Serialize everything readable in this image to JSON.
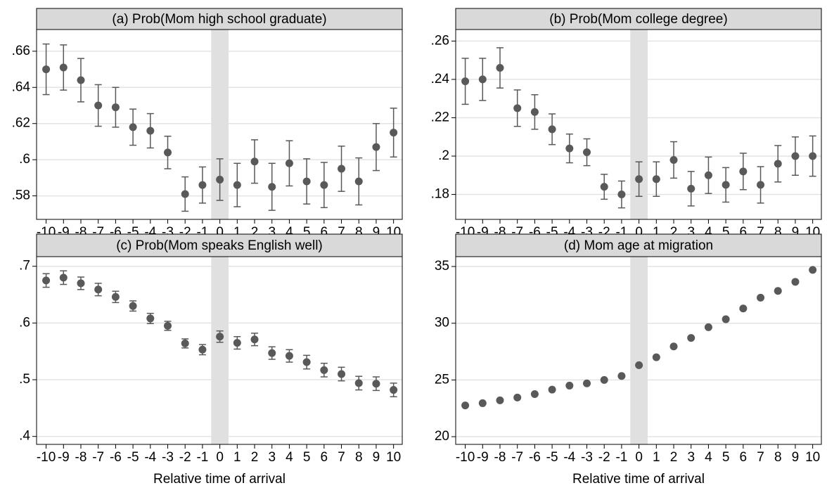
{
  "chart_data": [
    {
      "type": "scatter",
      "title": "(a) Prob(Mom high school graduate)",
      "x": [
        -10,
        -9,
        -8,
        -7,
        -6,
        -5,
        -4,
        -3,
        -2,
        -1,
        0,
        1,
        2,
        3,
        4,
        5,
        6,
        7,
        8,
        9,
        10
      ],
      "values": [
        0.65,
        0.651,
        0.644,
        0.63,
        0.629,
        0.618,
        0.616,
        0.604,
        0.581,
        0.586,
        0.589,
        0.586,
        0.599,
        0.585,
        0.598,
        0.588,
        0.586,
        0.595,
        0.588,
        0.607,
        0.615
      ],
      "errors": [
        0.014,
        0.0125,
        0.012,
        0.0115,
        0.011,
        0.01,
        0.0095,
        0.009,
        0.0095,
        0.01,
        0.0115,
        0.012,
        0.012,
        0.013,
        0.0125,
        0.0125,
        0.0125,
        0.0125,
        0.013,
        0.013,
        0.0135
      ],
      "color": "#595959",
      "xlim": [
        -10.55,
        10.5
      ],
      "xticks": [
        -10,
        -9,
        -8,
        -7,
        -6,
        -5,
        -4,
        -3,
        -2,
        -1,
        0,
        1,
        2,
        3,
        4,
        5,
        6,
        7,
        8,
        9,
        10
      ],
      "ylim": [
        0.567,
        0.672
      ],
      "yticks": [
        {
          "value": 0.58,
          "label": ".58"
        },
        {
          "value": 0.6,
          "label": ".6"
        },
        {
          "value": 0.62,
          "label": ".62"
        },
        {
          "value": 0.64,
          "label": ".64"
        },
        {
          "value": 0.66,
          "label": ".66"
        }
      ],
      "grid": true,
      "shaded_x": [
        -0.5,
        0.5
      ]
    },
    {
      "type": "scatter",
      "title": "(b) Prob(Mom college degree)",
      "x": [
        -10,
        -9,
        -8,
        -7,
        -6,
        -5,
        -4,
        -3,
        -2,
        -1,
        0,
        1,
        2,
        3,
        4,
        5,
        6,
        7,
        8,
        9,
        10
      ],
      "values": [
        0.239,
        0.24,
        0.246,
        0.225,
        0.223,
        0.214,
        0.204,
        0.202,
        0.184,
        0.18,
        0.188,
        0.188,
        0.198,
        0.183,
        0.19,
        0.185,
        0.192,
        0.185,
        0.196,
        0.2,
        0.2
      ],
      "errors": [
        0.012,
        0.011,
        0.0105,
        0.0095,
        0.009,
        0.008,
        0.0075,
        0.007,
        0.0065,
        0.007,
        0.009,
        0.009,
        0.0095,
        0.009,
        0.0095,
        0.009,
        0.0095,
        0.0095,
        0.0095,
        0.01,
        0.0105
      ],
      "color": "#595959",
      "xlim": [
        -10.55,
        10.5
      ],
      "xticks": [
        -10,
        -9,
        -8,
        -7,
        -6,
        -5,
        -4,
        -3,
        -2,
        -1,
        0,
        1,
        2,
        3,
        4,
        5,
        6,
        7,
        8,
        9,
        10
      ],
      "ylim": [
        0.167,
        0.266
      ],
      "yticks": [
        {
          "value": 0.18,
          "label": ".18"
        },
        {
          "value": 0.2,
          "label": ".2"
        },
        {
          "value": 0.22,
          "label": ".22"
        },
        {
          "value": 0.24,
          "label": ".24"
        },
        {
          "value": 0.26,
          "label": ".26"
        }
      ],
      "grid": true,
      "shaded_x": [
        -0.5,
        0.5
      ]
    },
    {
      "type": "scatter",
      "title": "(c) Prob(Mom speaks English well)",
      "xlabel": "Relative time of arrival",
      "x": [
        -10,
        -9,
        -8,
        -7,
        -6,
        -5,
        -4,
        -3,
        -2,
        -1,
        0,
        1,
        2,
        3,
        4,
        5,
        6,
        7,
        8,
        9,
        10
      ],
      "values": [
        0.675,
        0.68,
        0.67,
        0.659,
        0.646,
        0.63,
        0.608,
        0.595,
        0.564,
        0.553,
        0.576,
        0.565,
        0.571,
        0.547,
        0.542,
        0.531,
        0.517,
        0.51,
        0.494,
        0.493,
        0.482
      ],
      "errors": [
        0.012,
        0.012,
        0.011,
        0.011,
        0.01,
        0.009,
        0.009,
        0.008,
        0.008,
        0.009,
        0.01,
        0.011,
        0.011,
        0.011,
        0.011,
        0.012,
        0.012,
        0.012,
        0.012,
        0.012,
        0.012
      ],
      "color": "#595959",
      "xlim": [
        -10.55,
        10.5
      ],
      "xticks": [
        -10,
        -9,
        -8,
        -7,
        -6,
        -5,
        -4,
        -3,
        -2,
        -1,
        0,
        1,
        2,
        3,
        4,
        5,
        6,
        7,
        8,
        9,
        10
      ],
      "ylim": [
        0.386,
        0.717
      ],
      "yticks": [
        {
          "value": 0.4,
          "label": ".4"
        },
        {
          "value": 0.5,
          "label": ".5"
        },
        {
          "value": 0.6,
          "label": ".6"
        },
        {
          "value": 0.7,
          "label": ".7"
        }
      ],
      "grid": true,
      "shaded_x": [
        -0.5,
        0.5
      ]
    },
    {
      "type": "scatter",
      "title": "(d) Mom age at migration",
      "xlabel": "Relative time of arrival",
      "x": [
        -10,
        -9,
        -8,
        -7,
        -6,
        -5,
        -4,
        -3,
        -2,
        -1,
        0,
        1,
        2,
        3,
        4,
        5,
        6,
        7,
        8,
        9,
        10
      ],
      "values": [
        22.75,
        22.95,
        23.2,
        23.45,
        23.75,
        24.15,
        24.5,
        24.7,
        25.0,
        25.35,
        26.3,
        27.0,
        27.95,
        28.7,
        29.65,
        30.35,
        31.3,
        32.25,
        32.85,
        33.65,
        34.7
      ],
      "color": "#595959",
      "xlim": [
        -10.55,
        10.5
      ],
      "xticks": [
        -10,
        -9,
        -8,
        -7,
        -6,
        -5,
        -4,
        -3,
        -2,
        -1,
        0,
        1,
        2,
        3,
        4,
        5,
        6,
        7,
        8,
        9,
        10
      ],
      "ylim": [
        19.32,
        35.87
      ],
      "yticks": [
        20,
        25,
        30,
        35
      ],
      "grid": true,
      "shaded_x": [
        -0.5,
        0.5
      ]
    }
  ]
}
